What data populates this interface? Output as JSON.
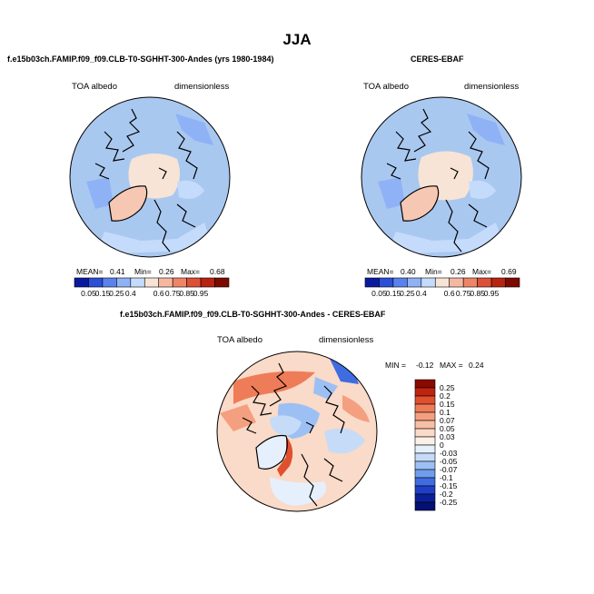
{
  "page": {
    "title": "JJA",
    "colors": {
      "land_outline": "#000000",
      "ocean_base": "#a9c8f0"
    }
  },
  "chart_data": [
    {
      "type": "heatmap",
      "id": "model",
      "title": "f.e15b03ch.FAMIP.f09_f09.CLB-T0-SGHHT-300-Andes (yrs 1980-1984)",
      "left_label": "TOA albedo",
      "right_label": "dimensionless",
      "stats": {
        "mean_label": "MEAN=",
        "mean": "0.41",
        "min_label": "Min=",
        "min": "0.26",
        "max_label": "Max=",
        "max": "0.68"
      },
      "colorbar_labels": [
        "0.05",
        "0.15",
        "0.25",
        "0.4",
        "0.6",
        "0.75",
        "0.85",
        "0.95"
      ],
      "colorbar_colors": [
        "#0a1aa0",
        "#2a4fd8",
        "#5a82ee",
        "#8fb2f6",
        "#c5dbfb",
        "#f7e4d6",
        "#f6b7a0",
        "#ef8567",
        "#dd4f36",
        "#b82410",
        "#7d0a00"
      ]
    },
    {
      "type": "heatmap",
      "id": "obs",
      "title": "CERES-EBAF",
      "left_label": "TOA albedo",
      "right_label": "dimensionless",
      "stats": {
        "mean_label": "MEAN=",
        "mean": "0.40",
        "min_label": "Min=",
        "min": "0.26",
        "max_label": "Max=",
        "max": "0.69"
      },
      "colorbar_labels": [
        "0.05",
        "0.15",
        "0.25",
        "0.4",
        "0.6",
        "0.75",
        "0.85",
        "0.95"
      ],
      "colorbar_colors": [
        "#0a1aa0",
        "#2a4fd8",
        "#5a82ee",
        "#8fb2f6",
        "#c5dbfb",
        "#f7e4d6",
        "#f6b7a0",
        "#ef8567",
        "#dd4f36",
        "#b82410",
        "#7d0a00"
      ]
    },
    {
      "type": "heatmap",
      "id": "diff",
      "title": "f.e15b03ch.FAMIP.f09_f09.CLB-T0-SGHHT-300-Andes - CERES-EBAF",
      "left_label": "TOA albedo",
      "right_label": "dimensionless",
      "stats": {
        "min_label": "MIN =",
        "min": "-0.12",
        "max_label": "MAX =",
        "max": "0.24"
      },
      "legend_labels": [
        "0.25",
        "0.2",
        "0.15",
        "0.1",
        "0.07",
        "0.05",
        "0.03",
        "0",
        "-0.03",
        "-0.05",
        "-0.07",
        "-0.1",
        "-0.15",
        "-0.2",
        "-0.25"
      ],
      "legend_colors": [
        "#8a0a00",
        "#c02410",
        "#e0502e",
        "#ef7c58",
        "#f4a080",
        "#f7c0a6",
        "#fadac8",
        "#fdf0e6",
        "#e6effc",
        "#c6dbf8",
        "#9dc0f4",
        "#6f9cec",
        "#3f6ce0",
        "#1f3fc8",
        "#0c1f98",
        "#041072"
      ]
    }
  ]
}
